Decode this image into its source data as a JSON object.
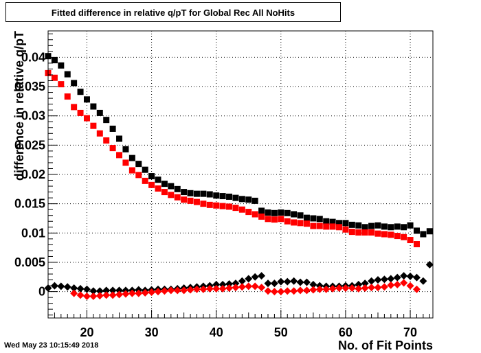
{
  "header": {
    "title": "Fitted difference in relative q/pT  for Global Rec All NoHits"
  },
  "footer": {
    "timestamp": "Wed May 23 10:15:49 2018"
  },
  "chart_data": {
    "type": "scatter",
    "title": "Fitted difference in relative q/pT  for Global Rec All NoHits",
    "xlabel": "No. of Fit Points",
    "ylabel": "difference in relative q/pT",
    "xlim": [
      14,
      73.5
    ],
    "ylim": [
      -0.0045,
      0.0445
    ],
    "grid": true,
    "x_ticks": [
      20,
      30,
      40,
      50,
      60,
      70
    ],
    "y_ticks": [
      0,
      0.005,
      0.01,
      0.015,
      0.02,
      0.025,
      0.03,
      0.035,
      0.04
    ],
    "y_tick_labels": [
      "0",
      "0.005",
      "0.01",
      "0.015",
      "0.02",
      "0.025",
      "0.03",
      "0.035",
      "0.04"
    ],
    "series": [
      {
        "color": "#000000",
        "marker": "square",
        "x": [
          14,
          15,
          16,
          17,
          18,
          19,
          20,
          21,
          22,
          23,
          24,
          25,
          26,
          27,
          28,
          29,
          30,
          31,
          32,
          33,
          34,
          35,
          36,
          37,
          38,
          39,
          40,
          41,
          42,
          43,
          44,
          45,
          46,
          47,
          48,
          49,
          50,
          51,
          52,
          53,
          54,
          55,
          56,
          57,
          58,
          59,
          60,
          61,
          62,
          63,
          64,
          65,
          66,
          67,
          68,
          69,
          70,
          71,
          72,
          73
        ],
        "y": [
          0.0402,
          0.0395,
          0.0386,
          0.0371,
          0.0356,
          0.0341,
          0.0328,
          0.0316,
          0.0305,
          0.0293,
          0.0278,
          0.0261,
          0.0243,
          0.0228,
          0.0218,
          0.0208,
          0.0197,
          0.0191,
          0.0184,
          0.018,
          0.0175,
          0.017,
          0.0168,
          0.0167,
          0.0167,
          0.0166,
          0.0164,
          0.0163,
          0.0162,
          0.016,
          0.0158,
          0.0157,
          0.0155,
          0.0138,
          0.0135,
          0.0134,
          0.0135,
          0.0134,
          0.0132,
          0.013,
          0.0126,
          0.0125,
          0.0124,
          0.012,
          0.0119,
          0.0117,
          0.0117,
          0.0114,
          0.0113,
          0.011,
          0.0112,
          0.0113,
          0.0111,
          0.011,
          0.0111,
          0.011,
          0.0113,
          0.0104,
          0.0098,
          0.0103
        ]
      },
      {
        "color": "#ff0000",
        "marker": "square",
        "x": [
          14,
          15,
          16,
          17,
          18,
          19,
          20,
          21,
          22,
          23,
          24,
          25,
          26,
          27,
          28,
          29,
          30,
          31,
          32,
          33,
          34,
          35,
          36,
          37,
          38,
          39,
          40,
          41,
          42,
          43,
          44,
          45,
          46,
          47,
          48,
          49,
          50,
          51,
          52,
          53,
          54,
          55,
          56,
          57,
          58,
          59,
          60,
          61,
          62,
          63,
          64,
          65,
          66,
          67,
          68,
          69,
          70,
          71
        ],
        "y": [
          0.0373,
          0.0365,
          0.0354,
          0.0333,
          0.0315,
          0.0305,
          0.0296,
          0.0283,
          0.027,
          0.0258,
          0.0245,
          0.0233,
          0.022,
          0.0207,
          0.0199,
          0.0189,
          0.0182,
          0.0176,
          0.017,
          0.0165,
          0.0161,
          0.0157,
          0.0155,
          0.0153,
          0.015,
          0.0148,
          0.0147,
          0.0146,
          0.0145,
          0.0143,
          0.014,
          0.0136,
          0.0132,
          0.0128,
          0.0124,
          0.0123,
          0.0124,
          0.012,
          0.0118,
          0.0117,
          0.0116,
          0.0112,
          0.0112,
          0.0111,
          0.0111,
          0.011,
          0.0106,
          0.0102,
          0.0101,
          0.0101,
          0.0101,
          0.0099,
          0.0098,
          0.0097,
          0.0095,
          0.0093,
          0.0088,
          0.0081
        ]
      },
      {
        "color": "#000000",
        "marker": "diamond",
        "x": [
          14,
          15,
          16,
          17,
          18,
          19,
          20,
          21,
          22,
          23,
          24,
          25,
          26,
          27,
          28,
          29,
          30,
          31,
          32,
          33,
          34,
          35,
          36,
          37,
          38,
          39,
          40,
          41,
          42,
          43,
          44,
          45,
          46,
          47,
          48,
          49,
          50,
          51,
          52,
          53,
          54,
          55,
          56,
          57,
          58,
          59,
          60,
          61,
          62,
          63,
          64,
          65,
          66,
          67,
          68,
          69,
          70,
          71,
          72,
          73
        ],
        "y": [
          0.0006,
          0.001,
          0.0009,
          0.0008,
          0.0006,
          0.0005,
          0.0004,
          0.0001,
          0.0001,
          0.0002,
          0.0002,
          0.0002,
          0.0002,
          0.0002,
          0.0003,
          0.0002,
          0.0003,
          0.0004,
          0.0004,
          0.0004,
          0.0005,
          0.0006,
          0.0007,
          0.0008,
          0.0009,
          0.001,
          0.0012,
          0.0012,
          0.0013,
          0.0014,
          0.0018,
          0.0022,
          0.0025,
          0.0027,
          0.0014,
          0.0014,
          0.0017,
          0.0017,
          0.0018,
          0.0016,
          0.0016,
          0.0012,
          0.001,
          0.0009,
          0.0009,
          0.0009,
          0.001,
          0.001,
          0.0012,
          0.0014,
          0.0018,
          0.002,
          0.0021,
          0.0022,
          0.0024,
          0.0027,
          0.0026,
          0.0024,
          0.0018,
          0.0046
        ]
      },
      {
        "color": "#ff0000",
        "marker": "diamond",
        "x": [
          18,
          19,
          20,
          21,
          22,
          23,
          24,
          25,
          26,
          27,
          28,
          29,
          30,
          31,
          32,
          33,
          34,
          35,
          36,
          37,
          38,
          39,
          40,
          41,
          42,
          43,
          44,
          45,
          46,
          47,
          48,
          49,
          50,
          51,
          52,
          53,
          54,
          55,
          56,
          57,
          58,
          59,
          60,
          61,
          62,
          63,
          64,
          65,
          66,
          67,
          68,
          69,
          70,
          71
        ],
        "y": [
          -0.0003,
          -0.0006,
          -0.0008,
          -0.0008,
          -0.0007,
          -0.0006,
          -0.0006,
          -0.0005,
          -0.0004,
          -0.0003,
          -0.0003,
          -0.0002,
          -0.0001,
          0.0,
          0.0001,
          0.0002,
          0.0002,
          0.0002,
          0.0003,
          0.0004,
          0.0004,
          0.0005,
          0.0005,
          0.0005,
          0.0006,
          0.0007,
          0.0008,
          0.0009,
          0.0009,
          0.0007,
          0.0001,
          0.0,
          0.0,
          0.0001,
          0.0001,
          0.0002,
          0.0002,
          0.0003,
          0.0004,
          0.0004,
          0.0005,
          0.0006,
          0.0006,
          0.0006,
          0.0005,
          0.0006,
          0.0007,
          0.0007,
          0.0008,
          0.0011,
          0.0012,
          0.0015,
          0.001,
          0.0004
        ]
      }
    ]
  }
}
